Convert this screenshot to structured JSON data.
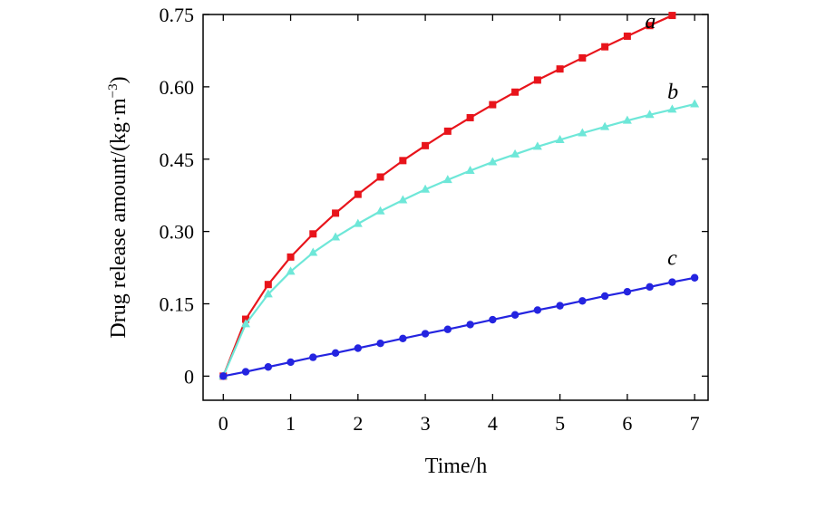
{
  "chart_data": {
    "type": "line",
    "title": "",
    "xlabel": "Time/h",
    "ylabel_main": "Drug release amount/(kg·m",
    "ylabel_sup": "−3",
    "ylabel_close": ")",
    "xlim": [
      -0.3,
      7.2
    ],
    "ylim": [
      -0.05,
      0.75
    ],
    "xticks": [
      0,
      1,
      2,
      3,
      4,
      5,
      6,
      7
    ],
    "xtick_labels": [
      "0",
      "1",
      "2",
      "3",
      "4",
      "5",
      "6",
      "7"
    ],
    "yticks": [
      0,
      0.15,
      0.3,
      0.45,
      0.6,
      0.75
    ],
    "ytick_labels": [
      "0",
      "0.15",
      "0.30",
      "0.45",
      "0.60",
      "0.75"
    ],
    "grid": false,
    "legend": "none",
    "series": [
      {
        "label": "a",
        "color": "#e8141b",
        "marker": "square",
        "x": [
          0,
          0.333,
          0.667,
          1.0,
          1.333,
          1.667,
          2.0,
          2.333,
          2.667,
          3.0,
          3.333,
          3.667,
          4.0,
          4.333,
          4.667,
          5.0,
          5.333,
          5.667,
          6.0,
          6.333,
          6.667
        ],
        "y": [
          0,
          0.118,
          0.19,
          0.247,
          0.295,
          0.338,
          0.377,
          0.413,
          0.447,
          0.478,
          0.508,
          0.536,
          0.563,
          0.589,
          0.614,
          0.637,
          0.66,
          0.683,
          0.705,
          0.727,
          0.748
        ]
      },
      {
        "label": "b",
        "color": "#6ee7d8",
        "marker": "triangle",
        "x": [
          0,
          0.333,
          0.667,
          1.0,
          1.333,
          1.667,
          2.0,
          2.333,
          2.667,
          3.0,
          3.333,
          3.667,
          4.0,
          4.333,
          4.667,
          5.0,
          5.333,
          5.667,
          6.0,
          6.333,
          6.667,
          7.0
        ],
        "y": [
          0,
          0.108,
          0.17,
          0.217,
          0.256,
          0.288,
          0.316,
          0.342,
          0.365,
          0.387,
          0.407,
          0.426,
          0.444,
          0.46,
          0.476,
          0.49,
          0.504,
          0.517,
          0.53,
          0.542,
          0.553,
          0.564
        ]
      },
      {
        "label": "c",
        "color": "#2424e0",
        "marker": "circle",
        "x": [
          0,
          0.333,
          0.667,
          1.0,
          1.333,
          1.667,
          2.0,
          2.333,
          2.667,
          3.0,
          3.333,
          3.667,
          4.0,
          4.333,
          4.667,
          5.0,
          5.333,
          5.667,
          6.0,
          6.333,
          6.667,
          7.0
        ],
        "y": [
          0,
          0.009,
          0.019,
          0.029,
          0.039,
          0.048,
          0.058,
          0.068,
          0.078,
          0.088,
          0.097,
          0.107,
          0.117,
          0.127,
          0.137,
          0.146,
          0.156,
          0.166,
          0.175,
          0.185,
          0.195,
          0.204
        ]
      }
    ],
    "curve_labels": [
      {
        "text": "a",
        "series": "a"
      },
      {
        "text": "b",
        "series": "b"
      },
      {
        "text": "c",
        "series": "c"
      }
    ]
  }
}
